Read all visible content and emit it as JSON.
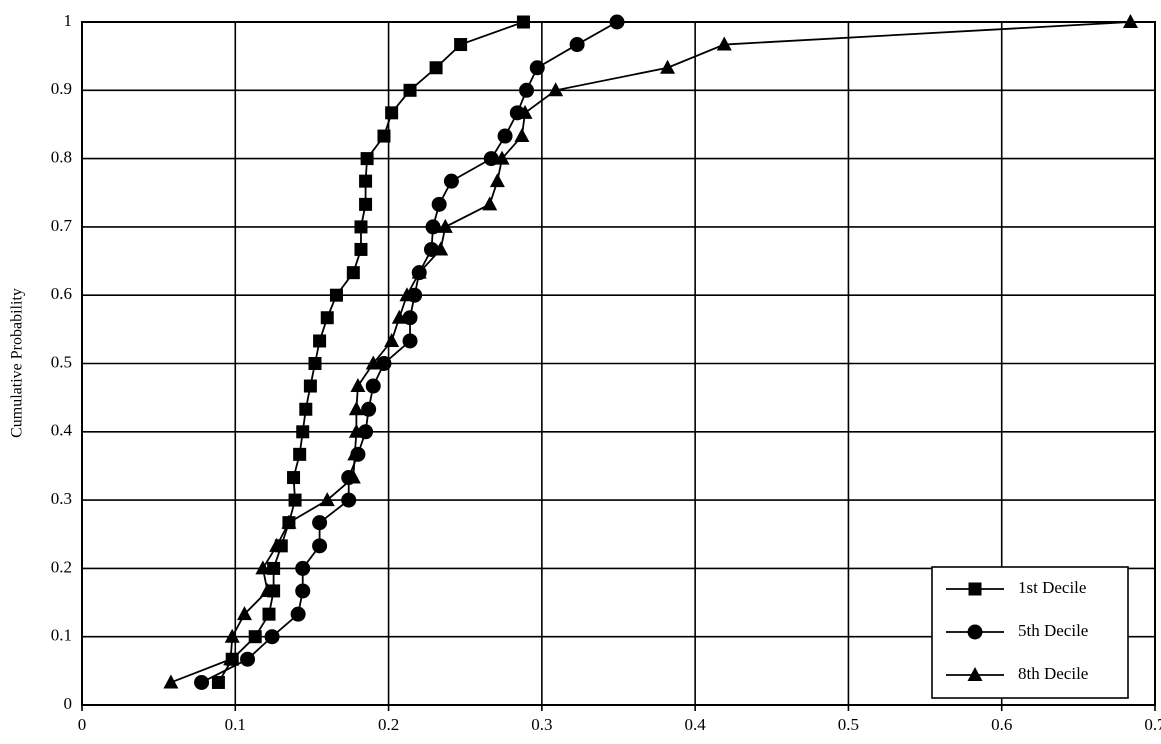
{
  "chart_data": {
    "type": "line",
    "y_label": "Cumulative Probability",
    "xlim": [
      0,
      0.7
    ],
    "xticks": [
      0,
      0.1,
      0.2,
      0.3,
      0.4,
      0.5,
      0.6,
      0.7
    ],
    "ylim": [
      0,
      1
    ],
    "yticks": [
      0,
      0.1,
      0.2,
      0.3,
      0.4,
      0.5,
      0.6,
      0.7,
      0.8,
      0.9,
      1
    ],
    "grid": true,
    "legend": "lower right",
    "series": [
      {
        "name": "1st Decile",
        "color": "#000000",
        "marker": "square",
        "x": [
          0.089,
          0.098,
          0.113,
          0.122,
          0.125,
          0.125,
          0.13,
          0.135,
          0.139,
          0.138,
          0.142,
          0.144,
          0.146,
          0.149,
          0.152,
          0.155,
          0.16,
          0.166,
          0.177,
          0.182,
          0.182,
          0.185,
          0.185,
          0.186,
          0.197,
          0.202,
          0.214,
          0.231,
          0.247,
          0.288
        ],
        "values": [
          0.033,
          0.067,
          0.1,
          0.133,
          0.167,
          0.2,
          0.233,
          0.267,
          0.3,
          0.333,
          0.367,
          0.4,
          0.433,
          0.467,
          0.5,
          0.533,
          0.567,
          0.6,
          0.633,
          0.667,
          0.7,
          0.733,
          0.767,
          0.8,
          0.833,
          0.867,
          0.9,
          0.933,
          0.967,
          1
        ]
      },
      {
        "name": "5th Decile",
        "color": "#000000",
        "marker": "circle",
        "x": [
          0.078,
          0.108,
          0.124,
          0.141,
          0.144,
          0.144,
          0.155,
          0.155,
          0.174,
          0.174,
          0.18,
          0.185,
          0.187,
          0.19,
          0.197,
          0.214,
          0.214,
          0.217,
          0.22,
          0.228,
          0.229,
          0.233,
          0.241,
          0.267,
          0.276,
          0.284,
          0.29,
          0.297,
          0.323,
          0.349
        ],
        "values": [
          0.033,
          0.067,
          0.1,
          0.133,
          0.167,
          0.2,
          0.233,
          0.267,
          0.3,
          0.333,
          0.367,
          0.4,
          0.433,
          0.467,
          0.5,
          0.533,
          0.567,
          0.6,
          0.633,
          0.667,
          0.7,
          0.733,
          0.767,
          0.8,
          0.833,
          0.867,
          0.9,
          0.933,
          0.967,
          1
        ]
      },
      {
        "name": "8th Decile",
        "color": "#000000",
        "marker": "triangle",
        "x": [
          0.058,
          0.097,
          0.098,
          0.106,
          0.121,
          0.118,
          0.127,
          0.135,
          0.16,
          0.177,
          0.178,
          0.179,
          0.179,
          0.18,
          0.19,
          0.202,
          0.207,
          0.212,
          0.22,
          0.234,
          0.237,
          0.266,
          0.271,
          0.274,
          0.287,
          0.289,
          0.309,
          0.382,
          0.419,
          0.684
        ],
        "values": [
          0.033,
          0.067,
          0.1,
          0.133,
          0.167,
          0.2,
          0.233,
          0.267,
          0.3,
          0.333,
          0.367,
          0.4,
          0.433,
          0.467,
          0.5,
          0.533,
          0.567,
          0.6,
          0.633,
          0.667,
          0.7,
          0.733,
          0.767,
          0.8,
          0.833,
          0.867,
          0.9,
          0.933,
          0.967,
          1
        ]
      }
    ]
  }
}
